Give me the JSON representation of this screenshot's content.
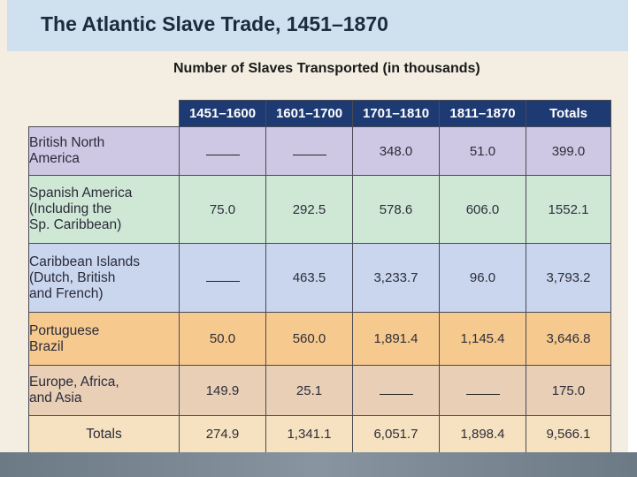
{
  "title": "The Atlantic Slave Trade, 1451–1870",
  "subtitle": "Number of Slaves Transported (in thousands)",
  "chart_data": {
    "type": "table",
    "title": "The Atlantic Slave Trade, 1451–1870",
    "subtitle": "Number of Slaves Transported (in thousands)",
    "columns": [
      "1451–1600",
      "1601–1700",
      "1701–1810",
      "1811–1870",
      "Totals"
    ],
    "rows": [
      {
        "label": [
          "British North",
          "America"
        ],
        "values": [
          "",
          "",
          "348.0",
          "51.0",
          "399.0"
        ]
      },
      {
        "label": [
          "Spanish America",
          "(Including the",
          "Sp. Caribbean)"
        ],
        "values": [
          "75.0",
          "292.5",
          "578.6",
          "606.0",
          "1552.1"
        ]
      },
      {
        "label": [
          "Caribbean Islands",
          "(Dutch, British",
          "and French)"
        ],
        "values": [
          "",
          "463.5",
          "3,233.7",
          "96.0",
          "3,793.2"
        ]
      },
      {
        "label": [
          "Portuguese",
          "Brazil"
        ],
        "values": [
          "50.0",
          "560.0",
          "1,891.4",
          "1,145.4",
          "3,646.8"
        ]
      },
      {
        "label": [
          "Europe, Africa,",
          "and Asia"
        ],
        "values": [
          "149.9",
          "25.1",
          "",
          "",
          "175.0"
        ]
      },
      {
        "label": [
          "Totals"
        ],
        "values": [
          "274.9",
          "1,341.1",
          "6,051.7",
          "1,898.4",
          "9,566.1"
        ]
      }
    ],
    "colors": {
      "header": "#1e3a73",
      "row_british": "#cfc8e4",
      "row_spanish": "#cfe8d6",
      "row_caribbean": "#c9d6ee",
      "row_brazil": "#f6c98e",
      "row_europe": "#e8cfb6",
      "row_totals": "#f6e2c0"
    }
  }
}
